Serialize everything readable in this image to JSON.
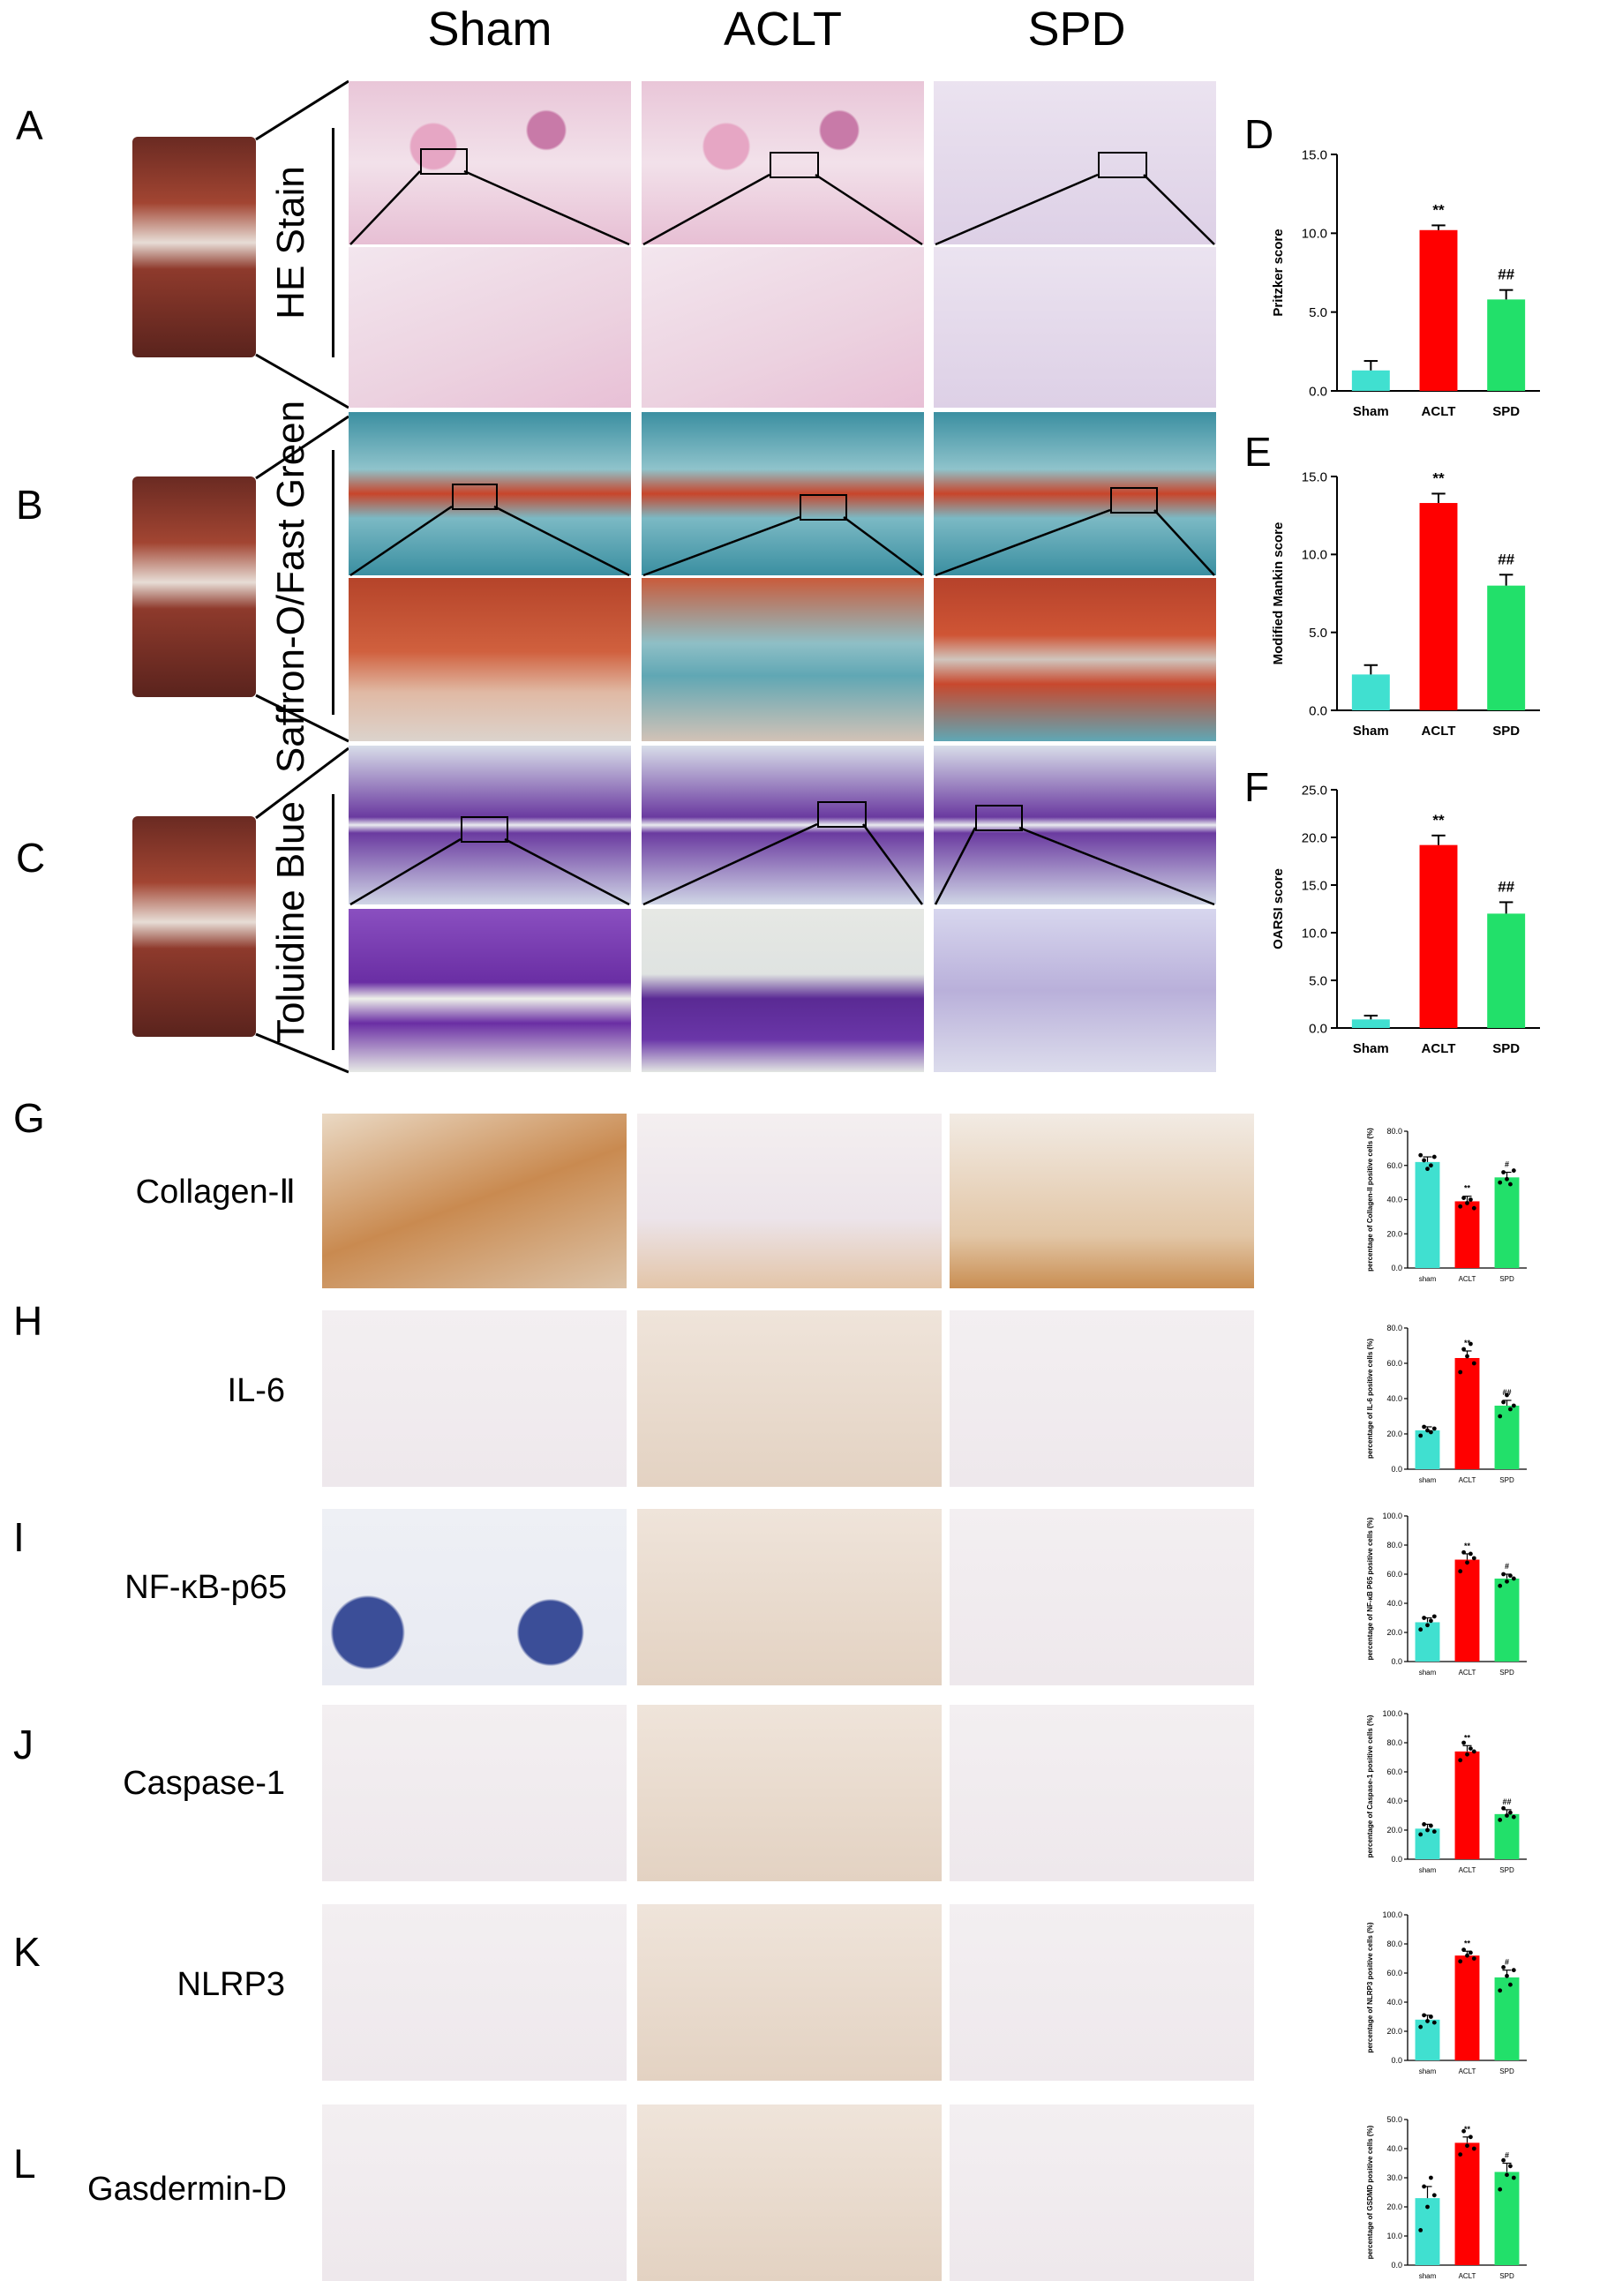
{
  "columns": [
    "Sham",
    "ACLT",
    "SPD"
  ],
  "panels": {
    "A": "A",
    "B": "B",
    "C": "C",
    "D": "D",
    "E": "E",
    "F": "F",
    "G": "G",
    "H": "H",
    "I": "I",
    "J": "J",
    "K": "K",
    "L": "L"
  },
  "stain_labels": {
    "he": "HE Stain",
    "sofg": "Saffron-O/Fast Green",
    "tb": "Toluidine Blue"
  },
  "ihc_labels": {
    "G": "Collagen-Ⅱ",
    "H": "IL-6",
    "I": "NF-κB-p65",
    "J": "Caspase-1",
    "K": "NLRP3",
    "L": "Gasdermin-D"
  },
  "colors": {
    "sham": "#40E0D0",
    "aclt": "#FF0000",
    "spd": "#22E06A"
  },
  "chart_data": [
    {
      "id": "D",
      "type": "bar",
      "categories": [
        "Sham",
        "ACLT",
        "SPD"
      ],
      "values": [
        1.3,
        10.2,
        5.8
      ],
      "errors": [
        0.6,
        0.3,
        0.6
      ],
      "ylabel": "Pritzker score",
      "ylim": [
        0,
        15
      ],
      "yticks": [
        "0.0",
        "5.0",
        "10.0",
        "15.0"
      ],
      "annotations": [
        "",
        "**",
        "##"
      ]
    },
    {
      "id": "E",
      "type": "bar",
      "categories": [
        "Sham",
        "ACLT",
        "SPD"
      ],
      "values": [
        2.3,
        13.3,
        8.0
      ],
      "errors": [
        0.6,
        0.6,
        0.7
      ],
      "ylabel": "Modified Mankin score",
      "ylim": [
        0,
        15
      ],
      "yticks": [
        "0.0",
        "5.0",
        "10.0",
        "15.0"
      ],
      "annotations": [
        "",
        "**",
        "##"
      ]
    },
    {
      "id": "F",
      "type": "bar",
      "categories": [
        "Sham",
        "ACLT",
        "SPD"
      ],
      "values": [
        0.9,
        19.2,
        12.0
      ],
      "errors": [
        0.4,
        1.0,
        1.2
      ],
      "ylabel": "OARSI score",
      "ylim": [
        0,
        25
      ],
      "yticks": [
        "0.0",
        "5.0",
        "10.0",
        "15.0",
        "20.0",
        "25.0"
      ],
      "annotations": [
        "",
        "**",
        "##"
      ]
    },
    {
      "id": "G",
      "type": "bar",
      "categories": [
        "sham",
        "ACLT",
        "SPD"
      ],
      "values": [
        62,
        39,
        53
      ],
      "errors": [
        3,
        3,
        3
      ],
      "points": [
        [
          66,
          63,
          58,
          60,
          65
        ],
        [
          36,
          41,
          38,
          40,
          35
        ],
        [
          50,
          56,
          52,
          49,
          57
        ]
      ],
      "ylabel": "percentage of Collagen-II positive cells (%)",
      "ylim": [
        0,
        80
      ],
      "yticks": [
        "0.0",
        "20.0",
        "40.0",
        "60.0",
        "80.0"
      ],
      "annotations": [
        "",
        "**",
        "#"
      ]
    },
    {
      "id": "H",
      "type": "bar",
      "categories": [
        "sham",
        "ACLT",
        "SPD"
      ],
      "values": [
        22,
        63,
        36
      ],
      "errors": [
        2,
        4,
        3
      ],
      "points": [
        [
          19,
          24,
          22,
          21,
          23
        ],
        [
          55,
          68,
          64,
          71,
          60
        ],
        [
          30,
          38,
          42,
          34,
          36
        ]
      ],
      "ylabel": "percentage of IL-6 positive cells (%)",
      "ylim": [
        0,
        80
      ],
      "yticks": [
        "0.0",
        "20.0",
        "40.0",
        "60.0",
        "80.0"
      ],
      "annotations": [
        "",
        "**",
        "##"
      ]
    },
    {
      "id": "I",
      "type": "bar",
      "categories": [
        "sham",
        "ACLT",
        "SPD"
      ],
      "values": [
        27,
        70,
        57
      ],
      "errors": [
        3,
        4,
        3
      ],
      "points": [
        [
          22,
          30,
          25,
          28,
          31
        ],
        [
          62,
          75,
          68,
          74,
          71
        ],
        [
          52,
          60,
          55,
          59,
          57
        ]
      ],
      "ylabel": "percentage of NF-κB P65 positive cells (%)",
      "ylim": [
        0,
        100
      ],
      "yticks": [
        "0.0",
        "20.0",
        "40.0",
        "60.0",
        "80.0",
        "100.0"
      ],
      "annotations": [
        "",
        "**",
        "#"
      ]
    },
    {
      "id": "J",
      "type": "bar",
      "categories": [
        "sham",
        "ACLT",
        "SPD"
      ],
      "values": [
        21,
        74,
        31
      ],
      "errors": [
        3,
        4,
        3
      ],
      "points": [
        [
          17,
          24,
          20,
          23,
          19
        ],
        [
          68,
          80,
          72,
          76,
          74
        ],
        [
          27,
          35,
          30,
          32,
          29
        ]
      ],
      "ylabel": "percentage of Caspase-1 positive cells (%)",
      "ylim": [
        0,
        100
      ],
      "yticks": [
        "0.0",
        "20.0",
        "40.0",
        "60.0",
        "80.0",
        "100.0"
      ],
      "annotations": [
        "",
        "**",
        "##"
      ]
    },
    {
      "id": "K",
      "type": "bar",
      "categories": [
        "sham",
        "ACLT",
        "SPD"
      ],
      "values": [
        28,
        72,
        57
      ],
      "errors": [
        3,
        3,
        5
      ],
      "points": [
        [
          23,
          31,
          27,
          30,
          26
        ],
        [
          68,
          76,
          72,
          74,
          70
        ],
        [
          48,
          64,
          58,
          52,
          62
        ]
      ],
      "ylabel": "percentage of NLRP3 positive cells (%)",
      "ylim": [
        0,
        100
      ],
      "yticks": [
        "0.0",
        "20.0",
        "40.0",
        "60.0",
        "80.0",
        "100.0"
      ],
      "annotations": [
        "",
        "**",
        "#"
      ]
    },
    {
      "id": "L",
      "type": "bar",
      "categories": [
        "sham",
        "ACLT",
        "SPD"
      ],
      "values": [
        23,
        42,
        32
      ],
      "errors": [
        4,
        2,
        3
      ],
      "points": [
        [
          12,
          27,
          20,
          30,
          24
        ],
        [
          38,
          46,
          41,
          44,
          40
        ],
        [
          26,
          36,
          31,
          34,
          30
        ]
      ],
      "ylabel": "percentage of GSDMD positive cells (%)",
      "ylim": [
        0,
        50
      ],
      "yticks": [
        "0.0",
        "10.0",
        "20.0",
        "30.0",
        "40.0",
        "50.0"
      ],
      "annotations": [
        "",
        "**",
        "#"
      ]
    }
  ]
}
